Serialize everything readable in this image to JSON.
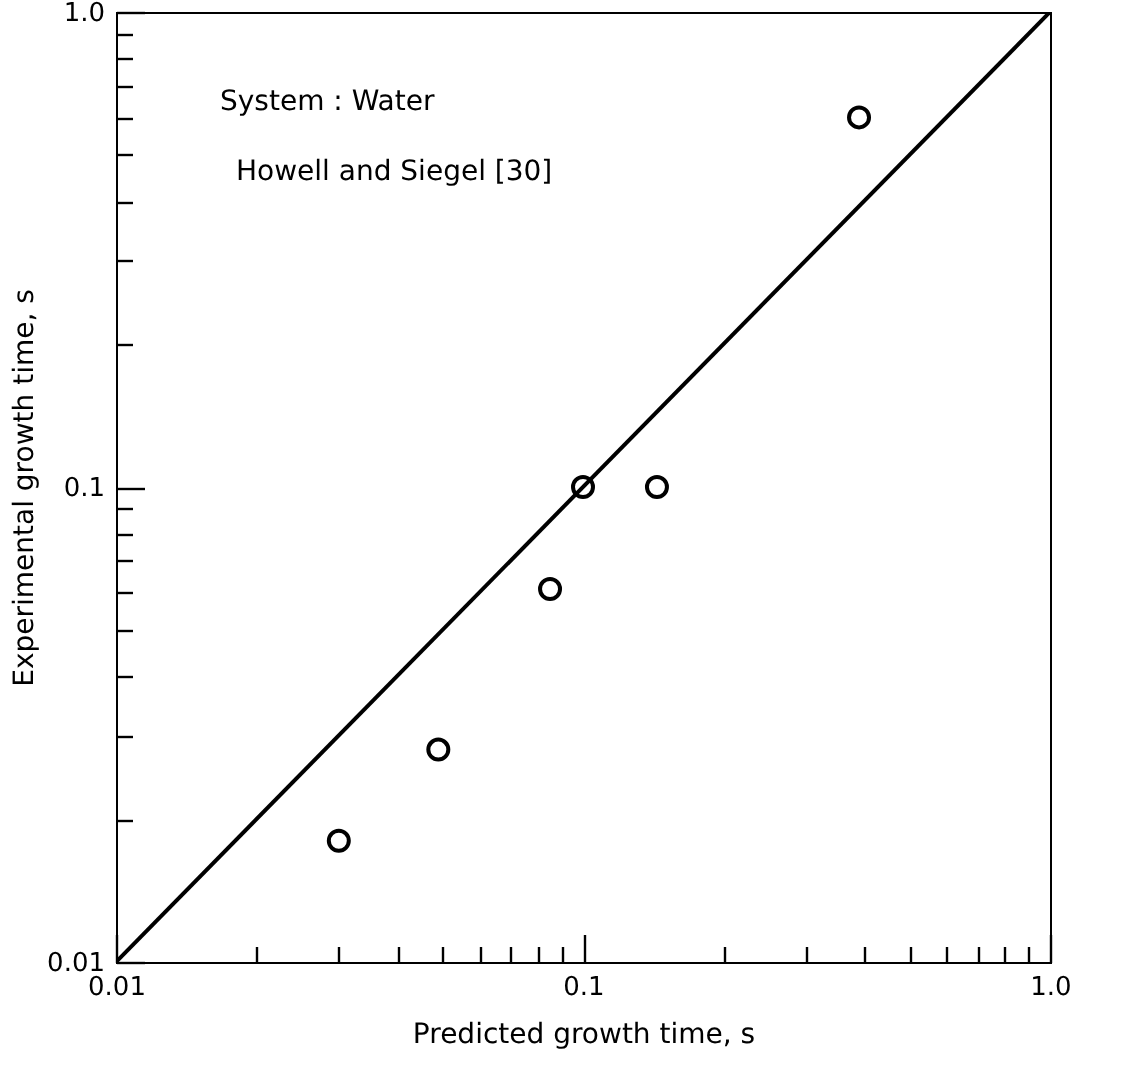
{
  "chart_data": {
    "type": "scatter",
    "xlabel": "Predicted growth time, s",
    "ylabel": "Experimental growth time, s",
    "annotations": [
      "System : Water",
      "Howell and Siegel [30]"
    ],
    "x": [
      0.03,
      0.049,
      0.085,
      0.1,
      0.144,
      0.39
    ],
    "series": [
      {
        "color": "#000000",
        "marker": "circle",
        "values": [
          0.018,
          0.028,
          0.061,
          0.1,
          0.1,
          0.6
        ]
      },
      {
        "type": "line",
        "color": "#000000",
        "line_style": "solid",
        "marker": "none",
        "x": [
          0.01,
          1.0
        ],
        "values": [
          0.01,
          1.0
        ]
      }
    ],
    "log": "xy",
    "grid": false,
    "xlim": [
      0.01,
      1.0
    ],
    "ylim": [
      0.01,
      1.0
    ],
    "xticks": [
      {
        "value": 0.01,
        "label": "0.01"
      },
      {
        "value": 0.02,
        "label": null
      },
      {
        "value": 0.03,
        "label": null
      },
      {
        "value": 0.04,
        "label": null
      },
      {
        "value": 0.05,
        "label": null
      },
      {
        "value": 0.06,
        "label": null
      },
      {
        "value": 0.07,
        "label": null
      },
      {
        "value": 0.08,
        "label": null
      },
      {
        "value": 0.09,
        "label": null
      },
      {
        "value": 0.1,
        "label": "0.1"
      },
      {
        "value": 0.2,
        "label": null
      },
      {
        "value": 0.3,
        "label": null
      },
      {
        "value": 0.4,
        "label": null
      },
      {
        "value": 0.5,
        "label": null
      },
      {
        "value": 0.6,
        "label": null
      },
      {
        "value": 0.7,
        "label": null
      },
      {
        "value": 0.8,
        "label": null
      },
      {
        "value": 0.9,
        "label": null
      },
      {
        "value": 1.0,
        "label": "1.0"
      }
    ],
    "yticks": [
      {
        "value": 0.01,
        "label": "0.01"
      },
      {
        "value": 0.02,
        "label": null
      },
      {
        "value": 0.03,
        "label": null
      },
      {
        "value": 0.04,
        "label": null
      },
      {
        "value": 0.05,
        "label": null
      },
      {
        "value": 0.06,
        "label": null
      },
      {
        "value": 0.07,
        "label": null
      },
      {
        "value": 0.08,
        "label": null
      },
      {
        "value": 0.09,
        "label": null
      },
      {
        "value": 0.1,
        "label": "0.1"
      },
      {
        "value": 0.2,
        "label": null
      },
      {
        "value": 0.3,
        "label": null
      },
      {
        "value": 0.4,
        "label": null
      },
      {
        "value": 0.5,
        "label": null
      },
      {
        "value": 0.6,
        "label": null
      },
      {
        "value": 0.7,
        "label": null
      },
      {
        "value": 0.8,
        "label": null
      },
      {
        "value": 0.9,
        "label": null
      },
      {
        "value": 1.0,
        "label": "1.0"
      }
    ]
  }
}
